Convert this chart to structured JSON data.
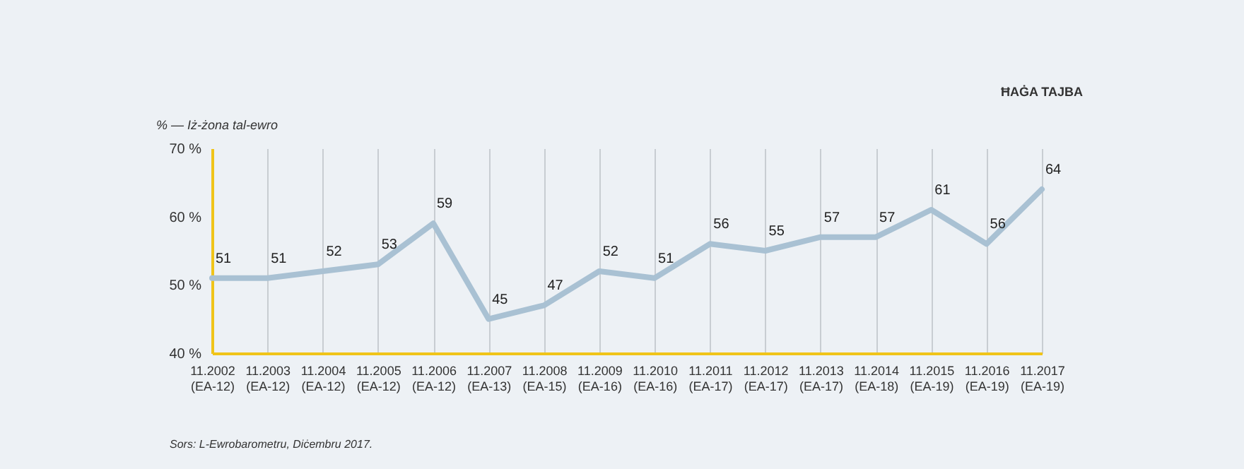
{
  "chart_data": {
    "type": "line",
    "ylabel": "% — Iż-żona tal-ewro",
    "categories": [
      "11.2002 (EA-12)",
      "11.2003 (EA-12)",
      "11.2004 (EA-12)",
      "11.2005 (EA-12)",
      "11.2006 (EA-12)",
      "11.2007 (EA-13)",
      "11.2008 (EA-15)",
      "11.2009 (EA-16)",
      "11.2010 (EA-16)",
      "11.2011 (EA-17)",
      "11.2012 (EA-17)",
      "11.2013 (EA-17)",
      "11.2014 (EA-18)",
      "11.2015 (EA-19)",
      "11.2016 (EA-19)",
      "11.2017 (EA-19)"
    ],
    "series": [
      {
        "color": "#a9c1d3",
        "values": [
          51,
          51,
          52,
          53,
          59,
          45,
          47,
          52,
          51,
          56,
          55,
          57,
          57,
          61,
          56,
          64
        ]
      }
    ],
    "ylim": [
      40,
      70
    ],
    "yticks": [
      {
        "value": 40,
        "label": "40 %"
      },
      {
        "value": 50,
        "label": "50 %"
      },
      {
        "value": 60,
        "label": "60 %"
      },
      {
        "value": 70,
        "label": "70 %"
      }
    ],
    "grid": "x",
    "data_labels": true,
    "marker": "none",
    "line_style": "solid",
    "annotations": [
      "ĦAĠA TAJBA",
      "Sors: L-Ewrobarometru, Diċembru 2017."
    ]
  }
}
